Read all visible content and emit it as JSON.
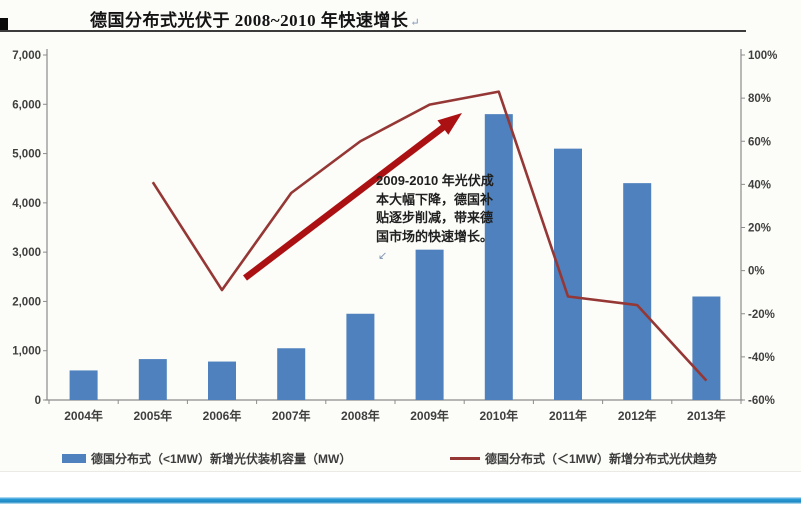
{
  "page": {
    "title": "德国分布式光伏于 2008~2010 年快速增长",
    "title_return_mark": "↵",
    "annotation": {
      "text": "2009-2010 年光伏成本大幅下降，德国补贴逐步削减，带来德国市场的快速增长。",
      "return_mark": "↙"
    },
    "legend": [
      {
        "swatch": "bar",
        "label": "德国分布式（<1MW）新增光伏装机容量（MW）"
      },
      {
        "swatch": "line",
        "label": "德国分布式（＜1MW）新增分布式光伏趋势"
      }
    ]
  },
  "colors": {
    "bar": "#4e81bd",
    "trend_line": "#953735",
    "arrow": "#ab1113",
    "axis": "#8c8c8c",
    "tick_text": "#3f3f3f",
    "bottom_rule": "#2a9ad6"
  },
  "chart_data": {
    "type": "bar",
    "title": "德国分布式光伏于 2008~2010 年快速增长",
    "categories": [
      "2004年",
      "2005年",
      "2006年",
      "2007年",
      "2008年",
      "2009年",
      "2010年",
      "2011年",
      "2012年",
      "2013年"
    ],
    "series": [
      {
        "name": "德国分布式（<1MW）新增光伏装机容量（MW）",
        "type": "bar",
        "axis": "left",
        "values": [
          600,
          830,
          780,
          1050,
          1750,
          3050,
          5800,
          5100,
          4400,
          2100
        ]
      },
      {
        "name": "德国分布式（＜1MW）新增分布式光伏趋势",
        "type": "line",
        "axis": "right",
        "values": [
          null,
          41,
          -9,
          36,
          60,
          77,
          83,
          -12,
          -16,
          -51
        ]
      }
    ],
    "left_axis": {
      "min": 0,
      "max": 7000,
      "tick_step": 1000,
      "tick_labels": [
        "0",
        "1,000",
        "2,000",
        "3,000",
        "4,000",
        "5,000",
        "6,000",
        "7,000"
      ]
    },
    "right_axis": {
      "min": -60,
      "max": 100,
      "tick_step": 20,
      "tick_labels": [
        "-60%",
        "-40%",
        "-20%",
        "0%",
        "20%",
        "40%",
        "60%",
        "80%",
        "100%"
      ]
    },
    "grid": false,
    "legend_position": "bottom",
    "annotation_text": "2009-2010 年光伏成本大幅下降，德国补贴逐步削减，带来德国市场的快速增长。"
  }
}
